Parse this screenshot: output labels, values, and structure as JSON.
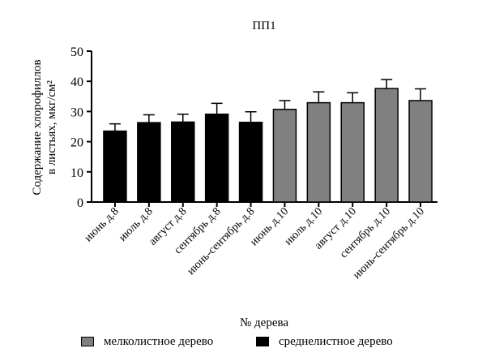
{
  "chart_data": {
    "type": "bar",
    "title": "ПП1",
    "xlabel": "№ дерева",
    "ylabel_line1": "Содержание хлорофиллов",
    "ylabel_line2": "в листьях, мкг/см²",
    "ylim": [
      0,
      50
    ],
    "yticks": [
      0,
      10,
      20,
      30,
      40,
      50
    ],
    "categories": [
      "июнь д.8",
      "июль д.8",
      "август д.8",
      "сентябрь д.8",
      "июнь-сентябрь д.8",
      "июнь д.10",
      "июль д.10",
      "август д.10",
      "сентябрь д.10",
      "июнь-сентябрь д.10"
    ],
    "values": [
      23.5,
      26.3,
      26.5,
      29.1,
      26.4,
      30.7,
      32.9,
      32.9,
      37.6,
      33.6
    ],
    "errors": [
      2.4,
      2.6,
      2.6,
      3.6,
      3.5,
      2.9,
      3.6,
      3.3,
      3.0,
      3.9
    ],
    "bar_groups": [
      "medium",
      "medium",
      "medium",
      "medium",
      "medium",
      "small",
      "small",
      "small",
      "small",
      "small"
    ],
    "group_colors": {
      "medium": "#000000",
      "small": "#808080"
    },
    "legend": [
      {
        "key": "small",
        "label": "мелколистное дерево"
      },
      {
        "key": "medium",
        "label": "среднелистное дерево"
      }
    ],
    "legend_position": "bottom",
    "grid": false
  }
}
